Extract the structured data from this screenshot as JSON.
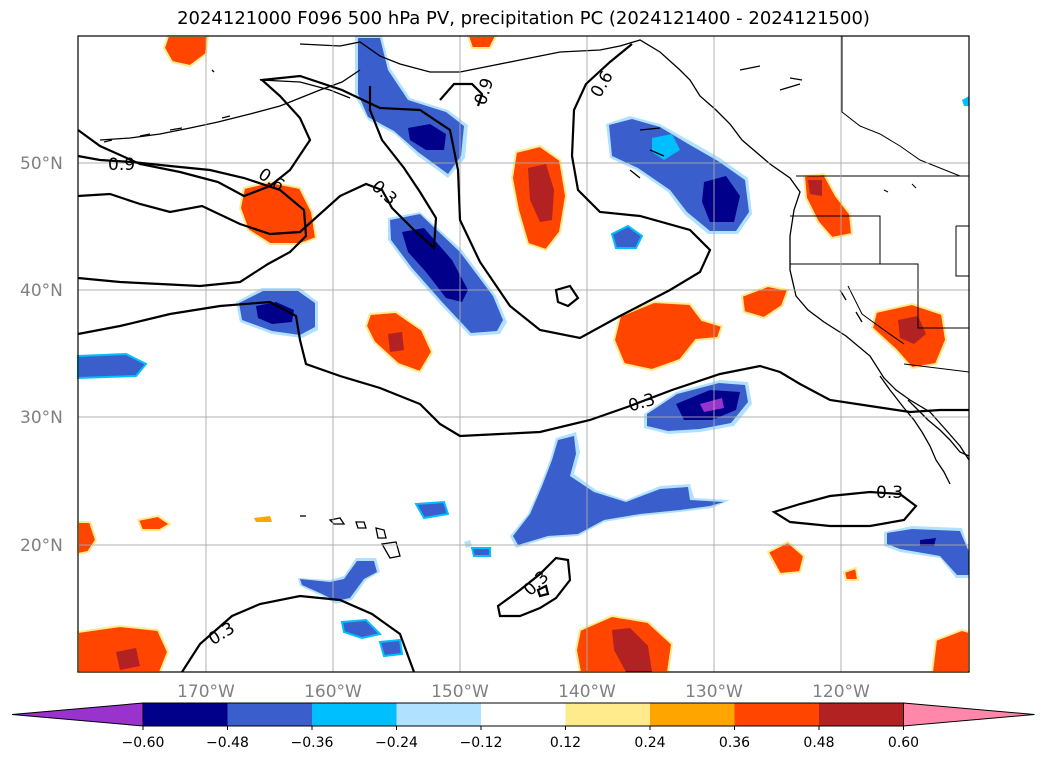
{
  "title": "2024121000 F096 500 hPa PV, precipitation PC (2024121400 - 2024121500)",
  "lat_labels": [
    "50°N",
    "40°N",
    "30°N",
    "20°N"
  ],
  "lon_labels": [
    "170°W",
    "160°W",
    "150°W",
    "140°W",
    "130°W",
    "120°W"
  ],
  "colorbar": {
    "ticks": [
      "−0.60",
      "−0.48",
      "−0.36",
      "−0.24",
      "−0.12",
      "0.12",
      "0.24",
      "0.36",
      "0.48",
      "0.60"
    ],
    "colors": [
      "#9a32cd",
      "#00008b",
      "#3a5fcd",
      "#00bfff",
      "#b0e2ff",
      "#ffffff",
      "#ffeb8c",
      "#ffa500",
      "#ff4500",
      "#b22222",
      "#ff88aa"
    ]
  },
  "contour_labels": [
    "0.9",
    "0.6",
    "0.3",
    "0.9",
    "0.6",
    "0.3",
    "0.3",
    "0.3",
    "0.3"
  ],
  "colors": {
    "deep_purple": "#9a32cd",
    "navy": "#00008b",
    "royal_blue": "#3a5fcd",
    "sky_blue": "#00bfff",
    "light_blue": "#b0e2ff",
    "yellow": "#ffeb8c",
    "orange": "#ffa500",
    "orange_red": "#ff4500",
    "firebrick": "#b22222",
    "pink": "#ff88aa"
  }
}
